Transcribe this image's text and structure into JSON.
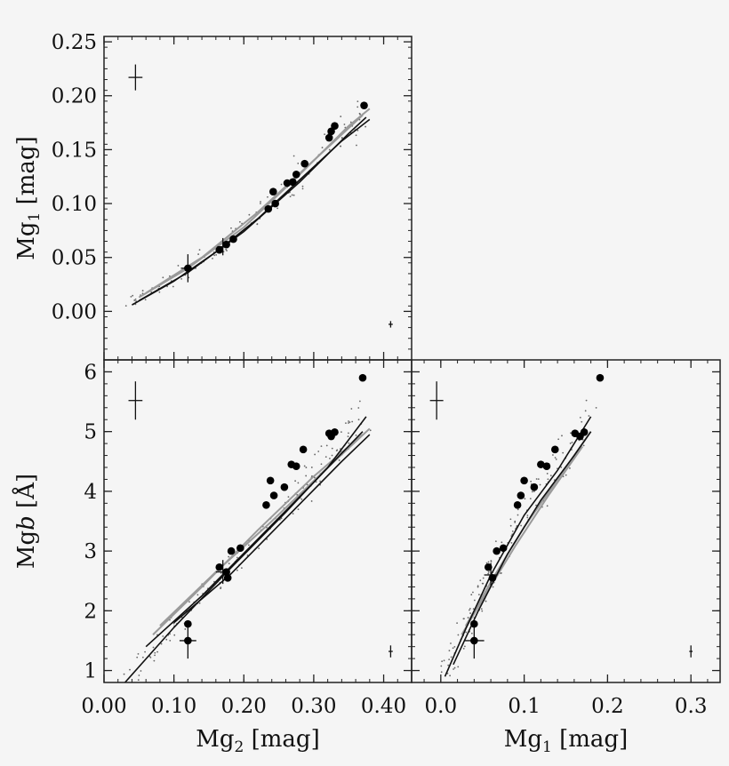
{
  "chart_data": [
    {
      "type": "scatter",
      "panel": "top-left",
      "xlabel": "",
      "ylabel_main": "Mg",
      "ylabel_sub": "1",
      "ylabel_unit": " [mag]",
      "xlim": [
        0.0,
        0.44
      ],
      "ylim": [
        -0.045,
        0.255
      ],
      "xticks": [],
      "yticks": [
        "0.25",
        "0.20",
        "0.15",
        "0.10",
        "0.05",
        "0.00"
      ],
      "ytick_values": [
        0.25,
        0.2,
        0.15,
        0.1,
        0.05,
        0.0
      ],
      "points": [
        [
          0.12,
          0.04
        ],
        [
          0.165,
          0.057
        ],
        [
          0.175,
          0.062
        ],
        [
          0.185,
          0.067
        ],
        [
          0.235,
          0.095
        ],
        [
          0.245,
          0.1
        ],
        [
          0.242,
          0.111
        ],
        [
          0.262,
          0.119
        ],
        [
          0.27,
          0.12
        ],
        [
          0.275,
          0.127
        ],
        [
          0.287,
          0.137
        ],
        [
          0.322,
          0.161
        ],
        [
          0.325,
          0.167
        ],
        [
          0.33,
          0.172
        ],
        [
          0.372,
          0.191
        ]
      ],
      "error_bars": [
        {
          "x": 0.12,
          "y": 0.04,
          "dx": 0.01,
          "dy": 0.013
        },
        {
          "x": 0.17,
          "y": 0.06,
          "dx": 0.008,
          "dy": 0.008
        }
      ],
      "typical_error": {
        "x": 0.045,
        "y": 0.217,
        "dx": 0.01,
        "dy": 0.012
      },
      "corner_error": {
        "x": 0.41,
        "y": -0.012,
        "dx": 0.003,
        "dy": 0.003
      },
      "curves_black": [
        [
          [
            0.04,
            0.006
          ],
          [
            0.1,
            0.028
          ],
          [
            0.16,
            0.055
          ],
          [
            0.22,
            0.086
          ],
          [
            0.28,
            0.122
          ],
          [
            0.34,
            0.158
          ],
          [
            0.38,
            0.178
          ]
        ],
        [
          [
            0.05,
            0.01
          ],
          [
            0.12,
            0.036
          ],
          [
            0.2,
            0.074
          ],
          [
            0.28,
            0.12
          ],
          [
            0.35,
            0.165
          ],
          [
            0.375,
            0.18
          ]
        ]
      ],
      "curves_grey": [
        [
          [
            0.05,
            0.013
          ],
          [
            0.12,
            0.04
          ],
          [
            0.2,
            0.078
          ],
          [
            0.28,
            0.127
          ],
          [
            0.35,
            0.172
          ],
          [
            0.38,
            0.188
          ]
        ],
        [
          [
            0.06,
            0.017
          ],
          [
            0.14,
            0.05
          ],
          [
            0.22,
            0.092
          ],
          [
            0.3,
            0.14
          ],
          [
            0.37,
            0.182
          ]
        ]
      ],
      "scatter_n": 130
    },
    {
      "type": "scatter",
      "panel": "bottom-left",
      "xlabel_main": "Mg",
      "xlabel_sub": "2",
      "xlabel_unit": " [mag]",
      "ylabel_main": "Mg",
      "ylabel_italic": "b",
      "ylabel_unit": " [Å]",
      "xlim": [
        0.0,
        0.44
      ],
      "ylim": [
        0.8,
        6.2
      ],
      "xticks": [
        "0.00",
        "0.10",
        "0.20",
        "0.30",
        "0.40"
      ],
      "xtick_values": [
        0.0,
        0.1,
        0.2,
        0.3,
        0.4
      ],
      "yticks": [
        "6",
        "5",
        "4",
        "3",
        "2",
        "1"
      ],
      "ytick_values": [
        6,
        5,
        4,
        3,
        2,
        1
      ],
      "points": [
        [
          0.12,
          1.5
        ],
        [
          0.12,
          1.78
        ],
        [
          0.165,
          2.73
        ],
        [
          0.175,
          2.65
        ],
        [
          0.177,
          2.55
        ],
        [
          0.182,
          3.0
        ],
        [
          0.195,
          3.05
        ],
        [
          0.232,
          3.77
        ],
        [
          0.238,
          4.18
        ],
        [
          0.243,
          3.93
        ],
        [
          0.258,
          4.07
        ],
        [
          0.268,
          4.45
        ],
        [
          0.275,
          4.42
        ],
        [
          0.285,
          4.7
        ],
        [
          0.322,
          4.97
        ],
        [
          0.325,
          4.92
        ],
        [
          0.33,
          4.99
        ],
        [
          0.37,
          5.9
        ]
      ],
      "error_bars": [
        {
          "x": 0.12,
          "y": 1.5,
          "dx": 0.012,
          "dy": 0.3
        },
        {
          "x": 0.17,
          "y": 2.65,
          "dx": 0.01,
          "dy": 0.2
        }
      ],
      "typical_error": {
        "x": 0.045,
        "y": 5.52,
        "dx": 0.01,
        "dy": 0.32
      },
      "corner_error": {
        "x": 0.41,
        "y": 1.32,
        "dx": 0.003,
        "dy": 0.1
      },
      "curves_black": [
        [
          [
            0.03,
            0.8
          ],
          [
            0.1,
            1.72
          ],
          [
            0.18,
            2.7
          ],
          [
            0.26,
            3.65
          ],
          [
            0.32,
            4.4
          ],
          [
            0.375,
            5.25
          ]
        ],
        [
          [
            0.06,
            1.4
          ],
          [
            0.14,
            2.25
          ],
          [
            0.22,
            3.2
          ],
          [
            0.3,
            4.15
          ],
          [
            0.37,
            5.0
          ]
        ],
        [
          [
            0.1,
            1.8
          ],
          [
            0.18,
            2.6
          ],
          [
            0.26,
            3.55
          ],
          [
            0.34,
            4.5
          ],
          [
            0.38,
            4.95
          ]
        ]
      ],
      "curves_grey": [
        [
          [
            0.07,
            1.6
          ],
          [
            0.14,
            2.4
          ],
          [
            0.22,
            3.35
          ],
          [
            0.3,
            4.25
          ],
          [
            0.37,
            4.95
          ]
        ],
        [
          [
            0.08,
            1.75
          ],
          [
            0.16,
            2.65
          ],
          [
            0.24,
            3.5
          ],
          [
            0.32,
            4.4
          ],
          [
            0.38,
            5.05
          ]
        ]
      ],
      "scatter_n": 150
    },
    {
      "type": "scatter",
      "panel": "bottom-right",
      "xlabel_main": "Mg",
      "xlabel_sub": "1",
      "xlabel_unit": " [mag]",
      "ylabel_main": "",
      "xlim": [
        -0.035,
        0.335
      ],
      "ylim": [
        0.8,
        6.2
      ],
      "xticks": [
        "0.0",
        "0.1",
        "0.2",
        "0.3"
      ],
      "xtick_values": [
        0.0,
        0.1,
        0.2,
        0.3
      ],
      "yticks": [],
      "ytick_values": [
        6,
        5,
        4,
        3,
        2,
        1
      ],
      "points": [
        [
          0.04,
          1.5
        ],
        [
          0.04,
          1.78
        ],
        [
          0.057,
          2.73
        ],
        [
          0.062,
          2.55
        ],
        [
          0.067,
          3.0
        ],
        [
          0.075,
          3.05
        ],
        [
          0.092,
          3.77
        ],
        [
          0.1,
          4.18
        ],
        [
          0.096,
          3.93
        ],
        [
          0.112,
          4.07
        ],
        [
          0.12,
          4.45
        ],
        [
          0.127,
          4.42
        ],
        [
          0.137,
          4.7
        ],
        [
          0.161,
          4.97
        ],
        [
          0.167,
          4.92
        ],
        [
          0.172,
          4.99
        ],
        [
          0.191,
          5.9
        ]
      ],
      "error_bars": [
        {
          "x": 0.04,
          "y": 1.5,
          "dx": 0.012,
          "dy": 0.3
        },
        {
          "x": 0.06,
          "y": 2.6,
          "dx": 0.008,
          "dy": 0.2
        }
      ],
      "typical_error": {
        "x": -0.005,
        "y": 5.52,
        "dx": 0.008,
        "dy": 0.32
      },
      "corner_error": {
        "x": 0.3,
        "y": 1.32,
        "dx": 0.002,
        "dy": 0.1
      },
      "curves_black": [
        [
          [
            0.005,
            0.9
          ],
          [
            0.03,
            1.7
          ],
          [
            0.06,
            2.6
          ],
          [
            0.1,
            3.6
          ],
          [
            0.14,
            4.35
          ],
          [
            0.18,
            5.25
          ]
        ],
        [
          [
            0.015,
            1.1
          ],
          [
            0.045,
            2.0
          ],
          [
            0.08,
            2.95
          ],
          [
            0.12,
            3.85
          ],
          [
            0.16,
            4.6
          ],
          [
            0.18,
            5.0
          ]
        ]
      ],
      "curves_grey": [
        [
          [
            0.025,
            1.6
          ],
          [
            0.055,
            2.3
          ],
          [
            0.09,
            3.1
          ],
          [
            0.13,
            3.95
          ],
          [
            0.17,
            4.75
          ]
        ],
        [
          [
            0.03,
            1.75
          ],
          [
            0.065,
            2.6
          ],
          [
            0.1,
            3.4
          ],
          [
            0.14,
            4.2
          ],
          [
            0.18,
            5.0
          ]
        ]
      ],
      "scatter_n": 150
    }
  ]
}
